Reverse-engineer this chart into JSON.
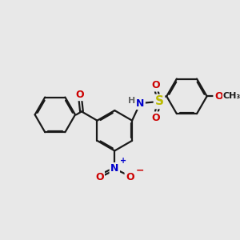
{
  "bg_color": "#e8e8e8",
  "bond_color": "#1a1a1a",
  "bond_width": 1.6,
  "dbo": 0.06,
  "atom_colors": {
    "O": "#cc0000",
    "N": "#0000cc",
    "S": "#bbbb00",
    "H": "#666666",
    "C": "#1a1a1a"
  },
  "font_size": 9,
  "fig_size": [
    3.0,
    3.0
  ],
  "dpi": 100
}
